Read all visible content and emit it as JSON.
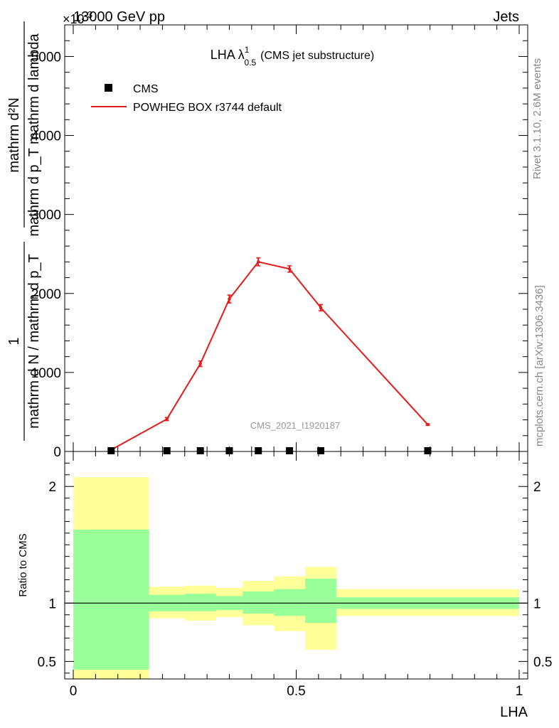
{
  "header": {
    "left": "13000 GeV pp",
    "right": "Jets",
    "exponent_label": "×10",
    "exponent_power": "-3"
  },
  "side_text": {
    "rivet": "Rivet 3.1.10,  2.6M events",
    "mcplots": "mcplots.cern.ch [arXiv:1306.3436]"
  },
  "chart_data": [
    {
      "type": "line",
      "title_main": "LHA λ",
      "title_sup": "1",
      "title_sub": "0.5",
      "title_suffix": "(CMS jet substructure)",
      "watermark": "CMS_2021_I1920187",
      "ylabel_numerator": "mathrm d²N",
      "ylabel_denominator": "mathrm d p_T mathrm d lambda",
      "ylabel_prefix_num": "1",
      "ylabel_prefix_den": "mathrm d N / mathrm d p_T",
      "ylabel_T": "T",
      "xlim": [
        0,
        1
      ],
      "ylim": [
        0,
        5400
      ],
      "yticks": [
        0,
        1000,
        2000,
        3000,
        4000,
        5000
      ],
      "ytick_labels": [
        "0",
        "1000",
        "2000",
        "3000",
        "4000",
        "5000"
      ],
      "legend": {
        "placement": "top-left",
        "cms_label": "CMS",
        "mc_label": "POWHEG BOX r3744 default"
      },
      "series": [
        {
          "name": "CMS",
          "marker": "square",
          "color": "#000000",
          "x": [
            0.085,
            0.21,
            0.285,
            0.35,
            0.415,
            0.485,
            0.555,
            0.795
          ],
          "y": [
            0,
            0,
            0,
            0,
            0,
            0,
            0,
            0
          ]
        },
        {
          "name": "POWHEG BOX r3744 default",
          "color": "#e8191a",
          "x": [
            0.085,
            0.21,
            0.285,
            0.35,
            0.415,
            0.485,
            0.555,
            0.795
          ],
          "y": [
            20,
            410,
            1110,
            1930,
            2400,
            2310,
            1820,
            340
          ],
          "yerr": [
            10,
            20,
            35,
            50,
            50,
            40,
            40,
            10
          ]
        }
      ]
    },
    {
      "type": "area",
      "ylabel": "Ratio to CMS",
      "xlabel": "LHA",
      "xlim": [
        0,
        1
      ],
      "ylim": [
        0.35,
        2.3
      ],
      "yticks": [
        0.5,
        1,
        2
      ],
      "ytick_labels": [
        "0.5",
        "1",
        "2"
      ],
      "xticks": [
        0,
        0.5,
        1
      ],
      "xtick_labels": [
        "0",
        "0.5",
        "1"
      ],
      "bins": [
        {
          "lo": 0.0,
          "hi": 0.17,
          "green": [
            0.43,
            1.63
          ],
          "yellow": [
            0.35,
            2.08
          ]
        },
        {
          "lo": 0.17,
          "hi": 0.25,
          "green": [
            0.93,
            1.07
          ],
          "yellow": [
            0.87,
            1.14
          ]
        },
        {
          "lo": 0.25,
          "hi": 0.32,
          "green": [
            0.93,
            1.08
          ],
          "yellow": [
            0.85,
            1.15
          ]
        },
        {
          "lo": 0.32,
          "hi": 0.38,
          "green": [
            0.94,
            1.06
          ],
          "yellow": [
            0.88,
            1.13
          ]
        },
        {
          "lo": 0.38,
          "hi": 0.45,
          "green": [
            0.91,
            1.1
          ],
          "yellow": [
            0.81,
            1.19
          ]
        },
        {
          "lo": 0.45,
          "hi": 0.52,
          "green": [
            0.89,
            1.12
          ],
          "yellow": [
            0.76,
            1.23
          ]
        },
        {
          "lo": 0.52,
          "hi": 0.59,
          "green": [
            0.83,
            1.21
          ],
          "yellow": [
            0.6,
            1.31
          ]
        },
        {
          "lo": 0.59,
          "hi": 1.0,
          "green": [
            0.95,
            1.05
          ],
          "yellow": [
            0.89,
            1.12
          ]
        }
      ]
    }
  ]
}
